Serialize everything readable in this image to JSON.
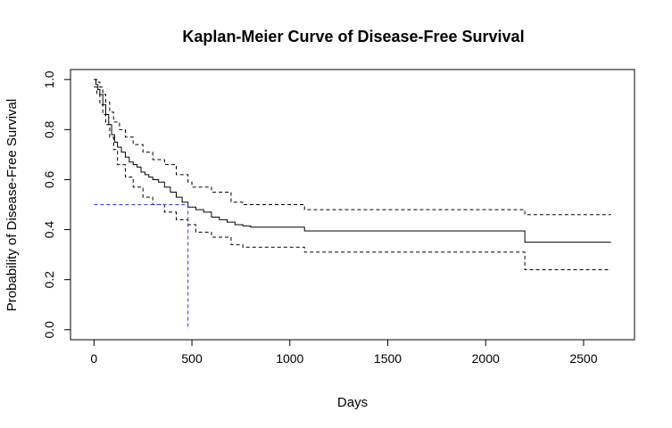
{
  "chart_data": {
    "type": "line",
    "title": "Kaplan-Meier Curve of Disease-Free Survival",
    "xlabel": "Days",
    "ylabel": "Probability of Disease-Free Survival",
    "xlim": [
      -120,
      2760
    ],
    "ylim": [
      -0.04,
      1.04
    ],
    "xticks": [
      0,
      500,
      1000,
      1500,
      2000,
      2500
    ],
    "yticks": [
      0.0,
      0.2,
      0.4,
      0.6,
      0.8,
      1.0
    ],
    "ytick_labels": [
      "0.0",
      "0.2",
      "0.4",
      "0.6",
      "0.8",
      "1.0"
    ],
    "grid": false,
    "legend": "none",
    "series": [
      {
        "style": "step-solid",
        "color": "#000000",
        "x": [
          0,
          10,
          20,
          30,
          45,
          60,
          75,
          90,
          105,
          120,
          140,
          160,
          180,
          200,
          220,
          240,
          260,
          280,
          300,
          330,
          360,
          390,
          420,
          450,
          480,
          520,
          560,
          600,
          640,
          680,
          720,
          760,
          800,
          900,
          1000,
          1075,
          1500,
          2000,
          2200,
          2640
        ],
        "y": [
          1.0,
          0.98,
          0.96,
          0.94,
          0.9,
          0.86,
          0.82,
          0.78,
          0.75,
          0.73,
          0.71,
          0.69,
          0.67,
          0.66,
          0.65,
          0.63,
          0.62,
          0.61,
          0.6,
          0.59,
          0.57,
          0.55,
          0.53,
          0.51,
          0.49,
          0.48,
          0.47,
          0.45,
          0.44,
          0.43,
          0.42,
          0.415,
          0.41,
          0.41,
          0.41,
          0.395,
          0.395,
          0.395,
          0.35,
          0.35
        ]
      },
      {
        "style": "step-dashed",
        "color": "#000000",
        "x": [
          0,
          15,
          30,
          45,
          60,
          80,
          100,
          130,
          160,
          200,
          250,
          300,
          360,
          420,
          480,
          500,
          600,
          700,
          760,
          1000,
          1075,
          1500,
          2000,
          2200,
          2640
        ],
        "y": [
          1.0,
          0.99,
          0.97,
          0.94,
          0.91,
          0.87,
          0.83,
          0.8,
          0.77,
          0.74,
          0.71,
          0.68,
          0.66,
          0.62,
          0.59,
          0.57,
          0.55,
          0.51,
          0.5,
          0.5,
          0.48,
          0.48,
          0.48,
          0.46,
          0.46
        ]
      },
      {
        "style": "step-dashed",
        "color": "#000000",
        "x": [
          0,
          15,
          30,
          45,
          60,
          80,
          100,
          120,
          160,
          200,
          250,
          300,
          360,
          420,
          480,
          520,
          600,
          700,
          760,
          1000,
          1075,
          1500,
          2000,
          2200,
          2640
        ],
        "y": [
          0.97,
          0.94,
          0.9,
          0.86,
          0.82,
          0.77,
          0.72,
          0.66,
          0.61,
          0.57,
          0.53,
          0.5,
          0.47,
          0.44,
          0.42,
          0.39,
          0.37,
          0.34,
          0.33,
          0.33,
          0.31,
          0.31,
          0.31,
          0.24,
          0.24
        ]
      }
    ],
    "median_marker": {
      "color": "#3333ff",
      "x": 480,
      "y": 0.5
    }
  }
}
